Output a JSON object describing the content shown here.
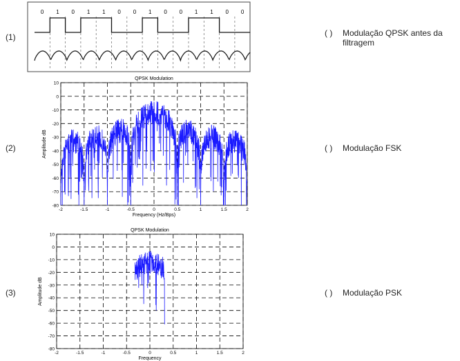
{
  "figure1": {
    "bits": [
      0,
      1,
      0,
      1,
      1,
      0,
      0,
      1,
      0,
      0,
      1,
      1,
      0,
      0
    ]
  },
  "items": [
    {
      "number": "(1)",
      "paren": "(   )",
      "option": "Modulação QPSK antes da filtragem"
    },
    {
      "number": "(2)",
      "paren": "(   )",
      "option": "Modulação FSK"
    },
    {
      "number": "(3)",
      "paren": "(   )",
      "option": "Modulação PSK"
    }
  ],
  "plot2": {
    "title": "QPSK Modulation",
    "y_label": "Amplitude dB",
    "x_label": "Frequency (Hz/Bps)",
    "yticks": [
      10,
      0,
      -10,
      -20,
      -30,
      -40,
      -50,
      -60,
      -70,
      -80
    ],
    "xticks": [
      -2,
      -1.5,
      -1,
      -0.5,
      0,
      0.5,
      1,
      1.5,
      2
    ]
  },
  "plot3": {
    "title": "QPSK Modulation",
    "y_label": "Amplitude dB",
    "x_label": "Frequency",
    "yticks": [
      10,
      0,
      -10,
      -20,
      -30,
      -40,
      -50,
      -60,
      -70,
      -80
    ],
    "xticks": [
      -2,
      -1.5,
      -1,
      -0.5,
      0,
      0.5,
      1,
      1.5,
      2
    ]
  }
}
